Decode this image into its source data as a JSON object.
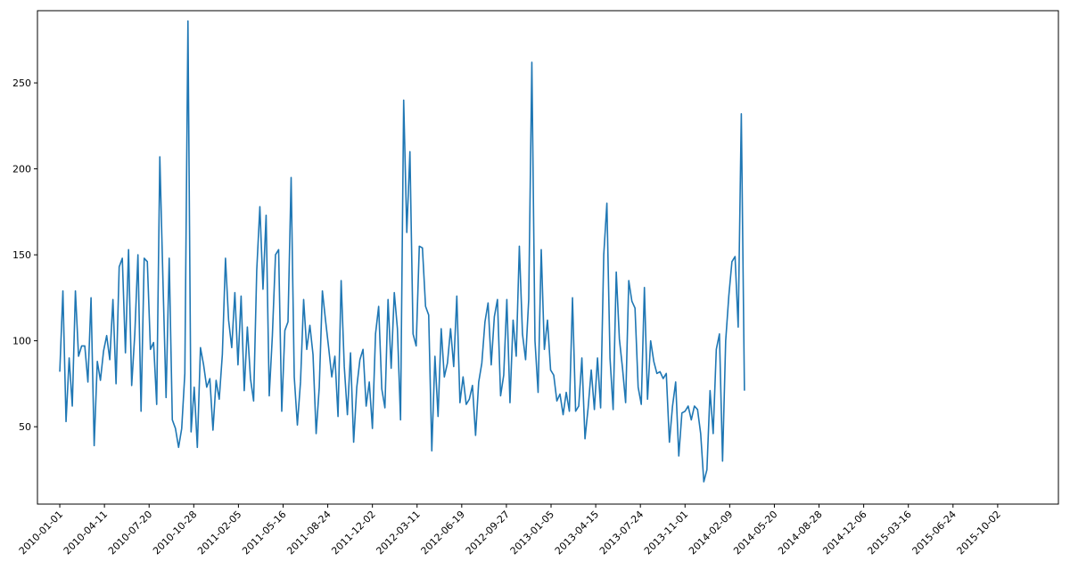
{
  "chart_data": {
    "type": "line",
    "title": "",
    "xlabel": "",
    "ylabel": "",
    "x_start": "2010-01-01",
    "x_step_days": 7,
    "x_ticks": [
      "2010-01-01",
      "2010-04-11",
      "2010-07-20",
      "2010-10-28",
      "2011-02-05",
      "2011-05-16",
      "2011-08-24",
      "2011-12-02",
      "2012-03-11",
      "2012-06-19",
      "2012-09-27",
      "2013-01-05",
      "2013-04-15",
      "2013-07-24",
      "2013-11-01",
      "2014-02-09",
      "2014-05-20",
      "2014-08-28",
      "2014-12-06",
      "2015-03-16",
      "2015-06-24",
      "2015-10-02"
    ],
    "y_ticks": [
      50,
      100,
      150,
      200,
      250
    ],
    "ylim": [
      5,
      292
    ],
    "xlim": [
      "2009-11-12",
      "2016-02-15"
    ],
    "grid": false,
    "color": "#1f77b4",
    "series": [
      {
        "values": [
          82,
          129,
          53,
          90,
          62,
          129,
          91,
          97,
          97,
          76,
          125,
          39,
          88,
          77,
          94,
          103,
          89,
          124,
          75,
          143,
          148,
          93,
          153,
          74,
          104,
          150,
          59,
          148,
          146,
          95,
          99,
          63,
          207,
          135,
          67,
          148,
          54,
          49,
          38,
          49,
          81,
          286,
          47,
          73,
          38,
          96,
          86,
          73,
          78,
          48,
          77,
          66,
          92,
          148,
          112,
          96,
          128,
          86,
          126,
          71,
          108,
          78,
          65,
          141,
          178,
          130,
          173,
          68,
          103,
          150,
          153,
          59,
          106,
          111,
          195,
          79,
          51,
          76,
          124,
          95,
          109,
          92,
          46,
          73,
          129,
          112,
          96,
          79,
          91,
          56,
          135,
          85,
          57,
          93,
          41,
          73,
          89,
          95,
          62,
          76,
          49,
          104,
          120,
          72,
          61,
          124,
          84,
          128,
          107,
          54,
          240,
          163,
          210,
          104,
          97,
          155,
          154,
          120,
          115,
          36,
          91,
          56,
          107,
          79,
          87,
          107,
          85,
          126,
          64,
          79,
          63,
          66,
          74,
          45,
          76,
          87,
          111,
          122,
          86,
          114,
          124,
          68,
          80,
          124,
          64,
          112,
          91,
          155,
          104,
          89,
          124,
          262,
          100,
          70,
          153,
          95,
          112,
          83,
          80,
          65,
          69,
          57,
          70,
          59,
          125,
          59,
          62,
          90,
          43,
          61,
          83,
          60,
          90,
          61,
          150,
          180,
          90,
          60,
          140,
          101,
          84,
          64,
          135,
          123,
          119,
          73,
          63,
          131,
          66,
          100,
          88,
          81,
          82,
          78,
          81,
          41,
          62,
          76,
          33,
          58,
          59,
          62,
          54,
          62,
          60,
          46,
          18,
          25,
          71,
          46,
          95,
          104,
          30,
          100,
          126,
          146,
          149,
          108,
          232,
          71
        ]
      }
    ]
  }
}
